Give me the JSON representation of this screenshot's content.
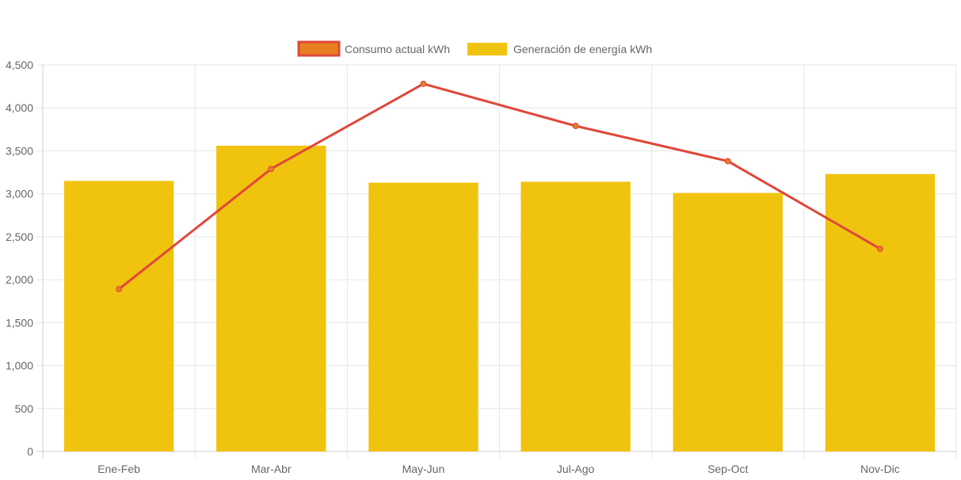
{
  "chart_data": {
    "type": "bar",
    "categories": [
      "Ene-Feb",
      "Mar-Abr",
      "May-Jun",
      "Jul-Ago",
      "Sep-Oct",
      "Nov-Dic"
    ],
    "series": [
      {
        "name": "Consumo actual kWh",
        "type": "line",
        "values": [
          1890,
          3290,
          4280,
          3790,
          3380,
          2360
        ],
        "color": "#e0473a",
        "point_color": "#e67e22"
      },
      {
        "name": "Generación de energía kWh",
        "type": "bar",
        "values": [
          3150,
          3560,
          3130,
          3140,
          3010,
          3230
        ],
        "color": "#f0c30f"
      }
    ],
    "y_ticks": [
      "0",
      "500",
      "1,000",
      "1,500",
      "2,000",
      "2,500",
      "3,000",
      "3,500",
      "4,000",
      "4,500"
    ],
    "ylim": [
      0,
      4500
    ],
    "grid": true,
    "legend_position": "top-center",
    "legend_swatch_colors": {
      "line_fill": "#e67e22",
      "line_border": "#e0473a",
      "bar_fill": "#f0c30f"
    },
    "gridline_color": "#e6e6e6"
  }
}
